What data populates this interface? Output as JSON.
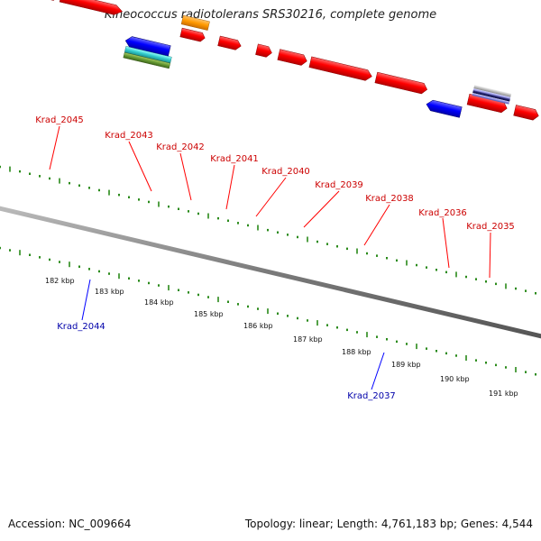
{
  "header": {
    "title": "Kineococcus radiotolerans SRS30216, complete genome"
  },
  "footer": {
    "accession": "Accession: NC_009664",
    "summary": "Topology: linear; Length: 4,761,183 bp; Genes: 4,544"
  },
  "colors": {
    "background": "#ffffff",
    "backbone": "#808080",
    "tick": "#2a8a1a",
    "forward_gene": "#ff0000",
    "reverse_gene": "#0000ff",
    "forward_label": "#cc0000",
    "reverse_label": "#0000aa",
    "feature_orange": "#ff9900",
    "feature_cyan": "#33cccc",
    "feature_olive": "#669933",
    "feature_navy": "#1a1a66",
    "feature_lavender": "#8888dd",
    "feature_gray": "#aaaaaa",
    "kbp_label": "#111111"
  },
  "scale": {
    "unit": "kbp",
    "labels": [
      "182 kbp",
      "183 kbp",
      "184 kbp",
      "185 kbp",
      "186 kbp",
      "187 kbp",
      "188 kbp",
      "189 kbp",
      "190 kbp",
      "191 kbp"
    ]
  },
  "genes": {
    "forward": [
      {
        "label": "Krad_2045"
      },
      {
        "label": "Krad_2043"
      },
      {
        "label": "Krad_2042"
      },
      {
        "label": "Krad_2041"
      },
      {
        "label": "Krad_2040"
      },
      {
        "label": "Krad_2039"
      },
      {
        "label": "Krad_2038"
      },
      {
        "label": "Krad_2036"
      },
      {
        "label": "Krad_2035"
      }
    ],
    "reverse": [
      {
        "label": "Krad_2044"
      },
      {
        "label": "Krad_2037"
      }
    ]
  }
}
